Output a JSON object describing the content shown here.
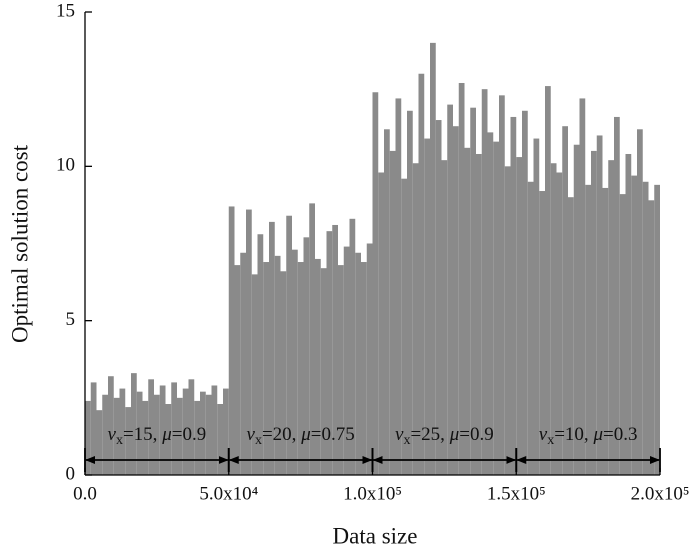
{
  "chart_data": {
    "type": "histogram",
    "x_label": "Data size",
    "y_label": "Optimal solution cost",
    "color": "#8a8a8a",
    "bins": [
      0,
      2000,
      4000,
      6000,
      8000,
      10000,
      12000,
      14000,
      16000,
      18000,
      20000,
      22000,
      24000,
      26000,
      28000,
      30000,
      32000,
      34000,
      36000,
      38000,
      40000,
      42000,
      44000,
      46000,
      48000,
      50000,
      52000,
      54000,
      56000,
      58000,
      60000,
      62000,
      64000,
      66000,
      68000,
      70000,
      72000,
      74000,
      76000,
      78000,
      80000,
      82000,
      84000,
      86000,
      88000,
      90000,
      92000,
      94000,
      96000,
      98000,
      100000,
      102000,
      104000,
      106000,
      108000,
      110000,
      112000,
      114000,
      116000,
      118000,
      120000,
      122000,
      124000,
      126000,
      128000,
      130000,
      132000,
      134000,
      136000,
      138000,
      140000,
      142000,
      144000,
      146000,
      148000,
      150000,
      152000,
      154000,
      156000,
      158000,
      160000,
      162000,
      164000,
      166000,
      168000,
      170000,
      172000,
      174000,
      176000,
      178000,
      180000,
      182000,
      184000,
      186000,
      188000,
      190000,
      192000,
      194000,
      196000,
      198000,
      200000
    ],
    "values": [
      2.4,
      3.0,
      2.1,
      2.6,
      3.2,
      2.5,
      2.8,
      2.2,
      3.3,
      2.7,
      2.4,
      3.1,
      2.6,
      2.9,
      2.3,
      3.0,
      2.5,
      2.8,
      3.1,
      2.4,
      2.7,
      2.6,
      2.9,
      2.3,
      2.8,
      8.7,
      6.8,
      7.2,
      8.6,
      6.5,
      7.8,
      6.9,
      8.2,
      7.1,
      6.6,
      8.4,
      7.3,
      6.9,
      7.7,
      8.8,
      7.0,
      6.7,
      7.9,
      8.1,
      6.8,
      7.4,
      8.3,
      7.2,
      6.9,
      7.5,
      12.4,
      9.8,
      11.2,
      10.5,
      12.2,
      9.6,
      11.8,
      10.1,
      13.0,
      10.9,
      14.0,
      11.5,
      10.2,
      12.0,
      11.3,
      12.7,
      10.6,
      11.9,
      10.4,
      12.5,
      11.1,
      10.8,
      12.3,
      10.0,
      11.6,
      10.3,
      11.8,
      9.5,
      10.9,
      9.2,
      12.6,
      10.1,
      9.8,
      11.3,
      9.0,
      10.7,
      12.2,
      9.4,
      10.5,
      11.0,
      9.3,
      10.2,
      11.6,
      9.1,
      10.4,
      9.7,
      11.2,
      9.5,
      8.9,
      9.4
    ],
    "xlim": [
      0,
      200000
    ],
    "ylim": [
      0,
      15
    ],
    "xticks": [
      {
        "value": 0,
        "label": "0.0"
      },
      {
        "value": 50000,
        "label": "5.0x10⁴"
      },
      {
        "value": 100000,
        "label": "1.0x10⁵"
      },
      {
        "value": 150000,
        "label": "1.5x10⁵"
      },
      {
        "value": 200000,
        "label": "2.0x10⁵"
      }
    ],
    "yticks": [
      0,
      5,
      10,
      15
    ],
    "annotations": [
      {
        "start": 0,
        "end": 50000,
        "var": "v",
        "sub": "x",
        "rest": "=15, ",
        "mu": "μ",
        "mu_rest": "=0.9"
      },
      {
        "start": 50000,
        "end": 100000,
        "var": "v",
        "sub": "x",
        "rest": "=20, ",
        "mu": "μ",
        "mu_rest": "=0.75"
      },
      {
        "start": 100000,
        "end": 150000,
        "var": "v",
        "sub": "x",
        "rest": "=25, ",
        "mu": "μ",
        "mu_rest": "=0.9"
      },
      {
        "start": 150000,
        "end": 200000,
        "var": "v",
        "sub": "x",
        "rest": "=10, ",
        "mu": "μ",
        "mu_rest": "=0.3"
      }
    ]
  }
}
